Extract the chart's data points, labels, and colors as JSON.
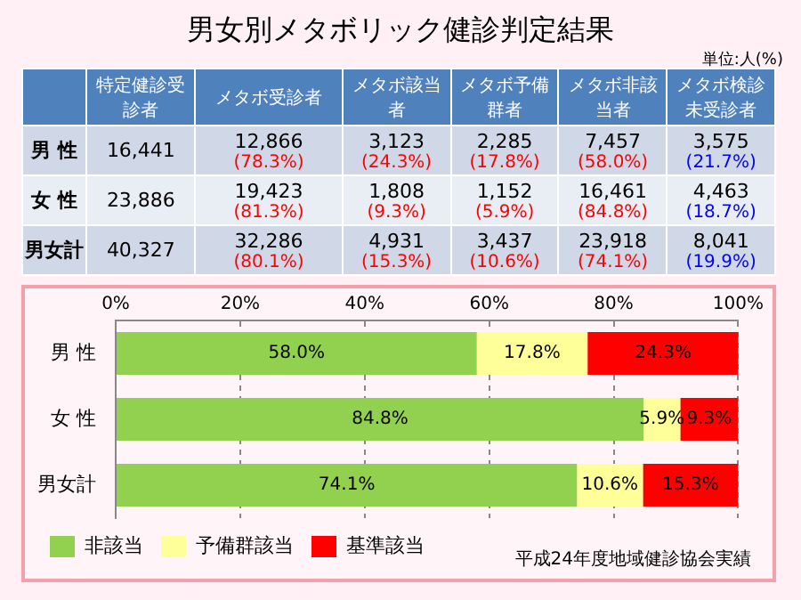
{
  "chart_data": [
    {
      "type": "other",
      "title": "男女別メタボリック健診判定結果",
      "annotations": [
        "単位:人(%)"
      ],
      "categories": [
        "特定健診受診者",
        "メタボ受診者",
        "メタボ該当者",
        "メタボ予備群者",
        "メタボ非該当者",
        "メタボ検診未受診者"
      ],
      "y_categories": [
        "男 性",
        "女 性",
        "男女計"
      ],
      "cell_labels": [
        [
          "16,441",
          "12,866\n(78.3%)",
          "3,123\n(24.3%)",
          "2,285\n(17.8%)",
          "7,457\n(58.0%)",
          "3,575\n(21.7%)"
        ],
        [
          "23,886",
          "19,423\n(81.3%)",
          "1,808\n(9.3%)",
          "1,152\n(5.9%)",
          "16,461\n(84.8%)",
          "4,463\n(18.7%)"
        ],
        [
          "40,327",
          "32,286\n(80.1%)",
          "4,931\n(15.3%)",
          "3,437\n(10.6%)",
          "23,918\n(74.1%)",
          "8,041\n(19.9%)"
        ]
      ]
    },
    {
      "type": "bar",
      "orientation": "horizontal",
      "stacked": true,
      "categories": [
        "男 性",
        "女 性",
        "男女計"
      ],
      "series": [
        {
          "name": "非該当",
          "color": "#92d050",
          "values": [
            58.0,
            84.8,
            74.1
          ],
          "value_labels": [
            "58.0%",
            "84.8%",
            "74.1%"
          ]
        },
        {
          "name": "予備群該当",
          "color": "#ffff99",
          "values": [
            17.8,
            5.9,
            10.6
          ],
          "value_labels": [
            "17.8%",
            "5.9%",
            "10.6%"
          ]
        },
        {
          "name": "基準該当",
          "color": "#ff0000",
          "values": [
            24.3,
            9.3,
            15.3
          ],
          "value_labels": [
            "24.3%",
            "9.3%",
            "15.3%"
          ]
        }
      ],
      "xlim": [
        0,
        100
      ],
      "xticks": [
        {
          "value": 0,
          "label": "0%"
        },
        {
          "value": 20,
          "label": "20%"
        },
        {
          "value": 40,
          "label": "40%"
        },
        {
          "value": 60,
          "label": "60%"
        },
        {
          "value": 80,
          "label": "80%"
        },
        {
          "value": 100,
          "label": "100%"
        }
      ],
      "grid": "x",
      "legend": "bottom left",
      "annotations": [
        "平成24年度地域健診協会実績"
      ]
    }
  ]
}
